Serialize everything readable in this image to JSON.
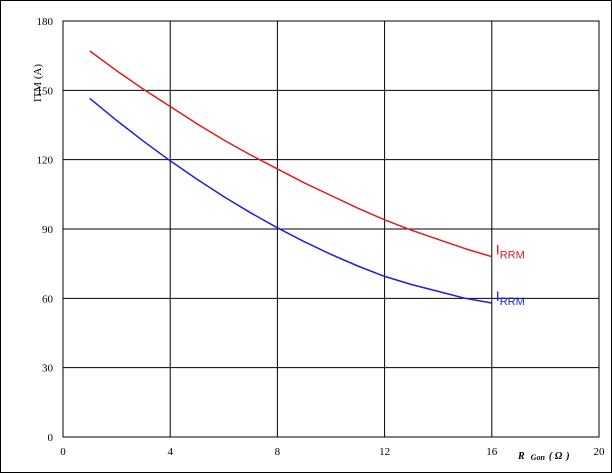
{
  "chart_data": {
    "type": "line",
    "ylabel": "ITM (A)",
    "xlabel": {
      "main": "R",
      "sub": "Gon",
      "unit_open": "( ",
      "unit": "Ω",
      "unit_close": ")"
    },
    "xlim": [
      0,
      20
    ],
    "ylim": [
      0,
      180
    ],
    "x_ticks": [
      0,
      4,
      8,
      12,
      16,
      20
    ],
    "y_ticks": [
      0,
      30,
      60,
      90,
      120,
      150,
      180
    ],
    "grid": true,
    "series": [
      {
        "label_main": "I",
        "label_sub": "RRM",
        "color": "#e31a1c",
        "x": [
          1,
          2,
          3,
          4,
          5,
          6,
          7,
          8,
          9,
          10,
          11,
          12,
          13,
          14,
          15,
          16
        ],
        "y": [
          167,
          158.5,
          150.5,
          143,
          135.5,
          128.5,
          122,
          116,
          110,
          104.5,
          99,
          94,
          89.5,
          85.5,
          81.5,
          78
        ]
      },
      {
        "label_main": "I",
        "label_sub": "RRM",
        "color": "#1f1fd6",
        "x": [
          1,
          2,
          3,
          4,
          5,
          6,
          7,
          8,
          9,
          10,
          11,
          12,
          13,
          14,
          15,
          16
        ],
        "y": [
          146.5,
          137,
          128,
          119.5,
          111.5,
          104,
          97,
          90.5,
          84.5,
          79,
          74,
          69.5,
          66,
          63,
          60,
          58
        ]
      }
    ]
  }
}
